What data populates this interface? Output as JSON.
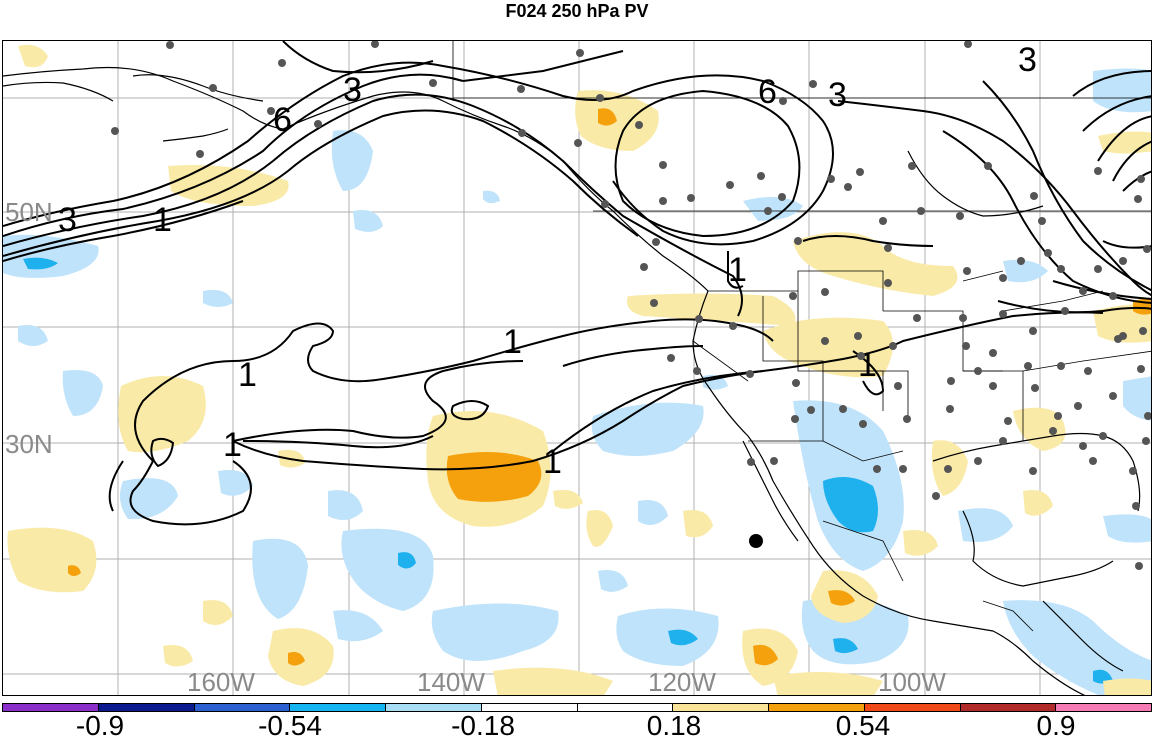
{
  "title": "F024 250 hPa PV",
  "map_labels": {
    "lon": [
      "160W",
      "140W",
      "120W",
      "100W"
    ],
    "lat": [
      "50N",
      "30N"
    ],
    "contours": [
      "1",
      "1",
      "1",
      "1",
      "1",
      "1",
      "1",
      "3",
      "3",
      "3",
      "3",
      "6",
      "6"
    ]
  },
  "colorbar": {
    "colors": [
      "#8a2fc9",
      "#0b1a8f",
      "#2c5fd0",
      "#16b4f0",
      "#a9dcf5",
      "#ffffff",
      "#ffffff",
      "#f9e49a",
      "#f5a10d",
      "#f04a18",
      "#b22b2b",
      "#f57bb4"
    ],
    "tick_labels": [
      "-0.9",
      "-0.54",
      "-0.18",
      "0.18",
      "0.54",
      "0.9"
    ]
  },
  "colors": {
    "light_blue": "#bfe3fa",
    "blue": "#1fb0ee",
    "light_yellow": "#faeaa8",
    "orange": "#f5a10d",
    "station_dot": "#555555",
    "grid": "#b0b0b0",
    "label_gray": "#8a8a8a"
  }
}
